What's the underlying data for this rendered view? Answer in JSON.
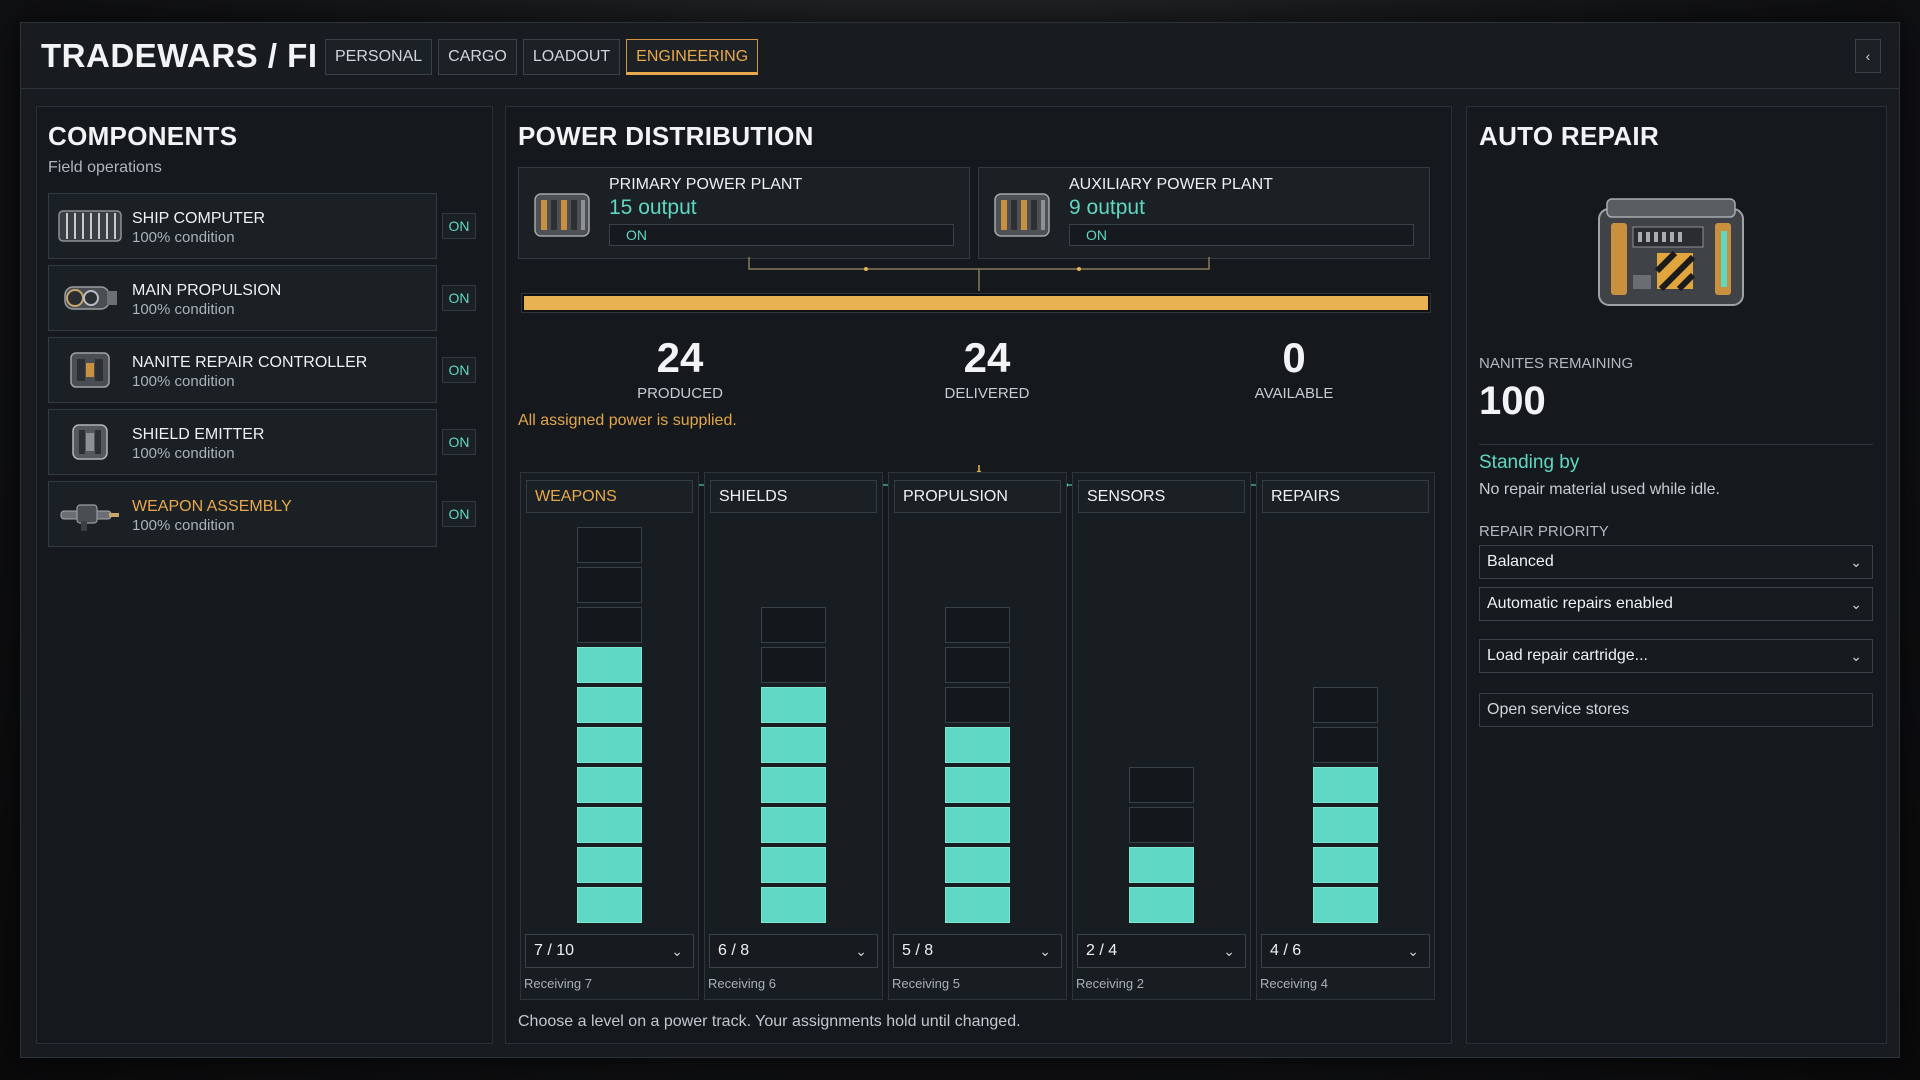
{
  "app": {
    "title": "TRADEWARS / FI",
    "collapse_icon": "‹"
  },
  "tabs": [
    {
      "label": "PERSONAL",
      "active": false
    },
    {
      "label": "CARGO",
      "active": false
    },
    {
      "label": "LOADOUT",
      "active": false
    },
    {
      "label": "ENGINEERING",
      "active": true
    }
  ],
  "components": {
    "title": "COMPONENTS",
    "subtitle": "Field operations",
    "items": [
      {
        "name": "SHIP COMPUTER",
        "condition": "100% condition",
        "state": "ON",
        "icon": "computer-icon"
      },
      {
        "name": "MAIN PROPULSION",
        "condition": "100% condition",
        "state": "ON",
        "icon": "thruster-icon"
      },
      {
        "name": "NANITE REPAIR CONTROLLER",
        "condition": "100% condition",
        "state": "ON",
        "icon": "repair-module-icon"
      },
      {
        "name": "SHIELD EMITTER",
        "condition": "100% condition",
        "state": "ON",
        "icon": "shield-module-icon"
      },
      {
        "name": "WEAPON ASSEMBLY",
        "condition": "100% condition",
        "state": "ON",
        "icon": "weapon-icon"
      }
    ]
  },
  "power": {
    "title": "POWER DISTRIBUTION",
    "plants": [
      {
        "name": "PRIMARY POWER PLANT",
        "output": "15 output",
        "state": "ON"
      },
      {
        "name": "AUXILIARY POWER PLANT",
        "output": "9 output",
        "state": "ON"
      }
    ],
    "supply_fraction": 1.0,
    "stats": [
      {
        "value": "24",
        "label": "PRODUCED"
      },
      {
        "value": "24",
        "label": "DELIVERED"
      },
      {
        "value": "0",
        "label": "AVAILABLE"
      }
    ],
    "message": "All assigned power is supplied.",
    "tracks": [
      {
        "name": "WEAPONS",
        "assigned": 7,
        "capacity": 10,
        "select": "7 / 10",
        "receiving": "Receiving 7"
      },
      {
        "name": "SHIELDS",
        "assigned": 6,
        "capacity": 8,
        "select": "6 / 8",
        "receiving": "Receiving 6"
      },
      {
        "name": "PROPULSION",
        "assigned": 5,
        "capacity": 8,
        "select": "5 / 8",
        "receiving": "Receiving 5"
      },
      {
        "name": "SENSORS",
        "assigned": 2,
        "capacity": 4,
        "select": "2 / 4",
        "receiving": "Receiving 2"
      },
      {
        "name": "REPAIRS",
        "assigned": 4,
        "capacity": 6,
        "select": "4 / 6",
        "receiving": "Receiving 4"
      }
    ],
    "hint": "Choose a level on a power track. Your assignments hold until changed."
  },
  "repair": {
    "title": "AUTO REPAIR",
    "nanites_label": "NANITES REMAINING",
    "nanites_value": "100",
    "status": "Standing by",
    "status_detail": "No repair material used while idle.",
    "priority_label": "REPAIR PRIORITY",
    "priority_value": "Balanced",
    "mode_value": "Automatic repairs enabled",
    "cartridge_value": "Load repair cartridge...",
    "stores_button": "Open service stores"
  },
  "colors": {
    "accent": "#e9a84c",
    "teal": "#5ed8c4",
    "panel": "#15191d"
  }
}
